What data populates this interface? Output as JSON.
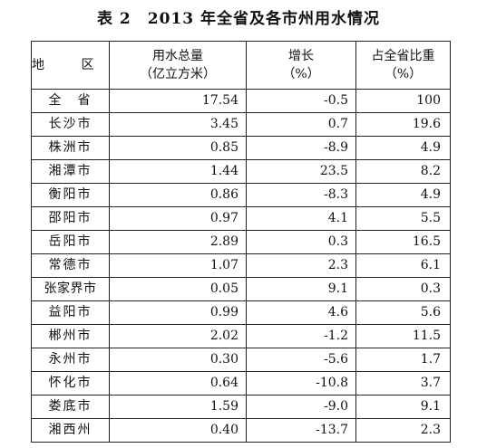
{
  "table": {
    "title": "表 2　2013 年全省及各市州用水情况",
    "headers": {
      "region": "地 区",
      "total_line1": "用水总量",
      "total_line2": "（亿立方米）",
      "growth_line1": "增长",
      "growth_line2": "（%）",
      "share_line1": "占全省比重",
      "share_line2": "（%）"
    },
    "rows": [
      {
        "region": "全　省",
        "total": "17.54",
        "growth": "-0.5",
        "share": "100"
      },
      {
        "region": "长沙市",
        "total": "3.45",
        "growth": "0.7",
        "share": "19.6"
      },
      {
        "region": "株洲市",
        "total": "0.85",
        "growth": "-8.9",
        "share": "4.9"
      },
      {
        "region": "湘潭市",
        "total": "1.44",
        "growth": "23.5",
        "share": "8.2"
      },
      {
        "region": "衡阳市",
        "total": "0.86",
        "growth": "-8.3",
        "share": "4.9"
      },
      {
        "region": "邵阳市",
        "total": "0.97",
        "growth": "4.1",
        "share": "5.5"
      },
      {
        "region": "岳阳市",
        "total": "2.89",
        "growth": "0.3",
        "share": "16.5"
      },
      {
        "region": "常德市",
        "total": "1.07",
        "growth": "2.3",
        "share": "6.1"
      },
      {
        "region": "张家界市",
        "total": "0.05",
        "growth": "9.1",
        "share": "0.3"
      },
      {
        "region": "益阳市",
        "total": "0.99",
        "growth": "4.6",
        "share": "5.6"
      },
      {
        "region": "郴州市",
        "total": "2.02",
        "growth": "-1.2",
        "share": "11.5"
      },
      {
        "region": "永州市",
        "total": "0.30",
        "growth": "-5.6",
        "share": "1.7"
      },
      {
        "region": "怀化市",
        "total": "0.64",
        "growth": "-10.8",
        "share": "3.7"
      },
      {
        "region": "娄底市",
        "total": "1.59",
        "growth": "-9.0",
        "share": "9.1"
      },
      {
        "region": "湘西州",
        "total": "0.40",
        "growth": "-13.7",
        "share": "2.3"
      }
    ]
  }
}
